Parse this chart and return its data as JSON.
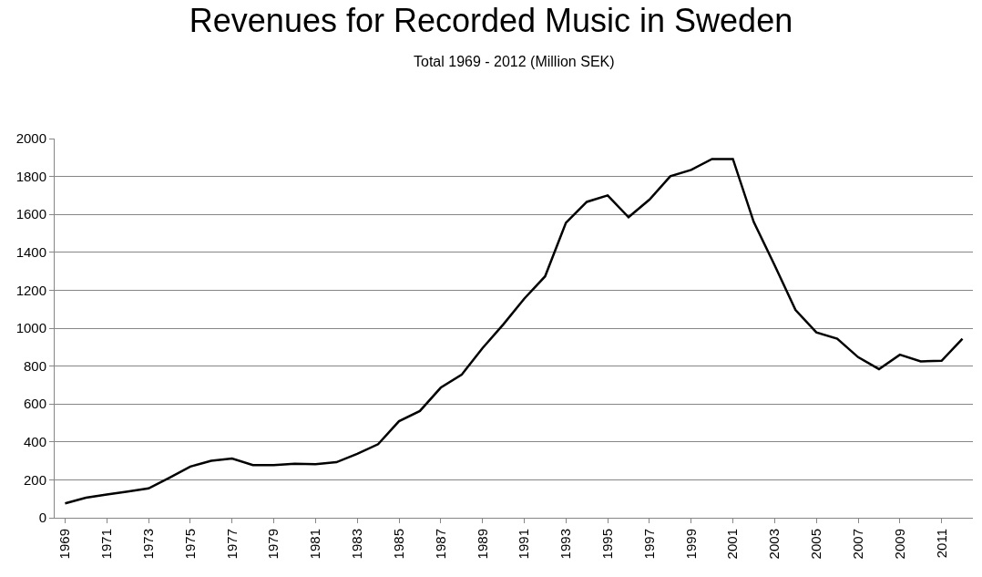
{
  "chart_data": {
    "type": "line",
    "title": "Revenues for Recorded Music in Sweden",
    "subtitle": "Total 1969 - 2012 (Million SEK)",
    "categories": [
      "1969",
      null,
      "1971",
      null,
      "1973",
      null,
      "1975",
      null,
      "1977",
      null,
      "1979",
      null,
      "1981",
      null,
      "1983",
      null,
      "1985",
      null,
      "1987",
      null,
      "1989",
      null,
      "1991",
      null,
      "1993",
      null,
      "1995",
      null,
      "1997",
      null,
      "1999",
      null,
      "2001",
      null,
      "2003",
      null,
      "2005",
      null,
      "2007",
      null,
      "2009",
      null,
      "2011",
      null
    ],
    "series": [
      {
        "color": "#000000",
        "values": [
          76,
          106,
          123,
          138,
          155,
          211,
          270,
          300,
          312,
          278,
          278,
          285,
          283,
          293,
          337,
          388,
          509,
          563,
          686,
          754,
          894,
          1020,
          1155,
          1273,
          1556,
          1666,
          1700,
          1585,
          1678,
          1801,
          1835,
          1892,
          1892,
          1560,
          1332,
          1096,
          978,
          944,
          847,
          784,
          860,
          825,
          828,
          944
        ]
      }
    ],
    "ylim": [
      0,
      2000
    ],
    "yticks": [
      0,
      200,
      400,
      600,
      800,
      1000,
      1200,
      1400,
      1600,
      1800,
      2000
    ],
    "grid": "y",
    "legend": false,
    "marker": "none",
    "line_style": "solid"
  }
}
